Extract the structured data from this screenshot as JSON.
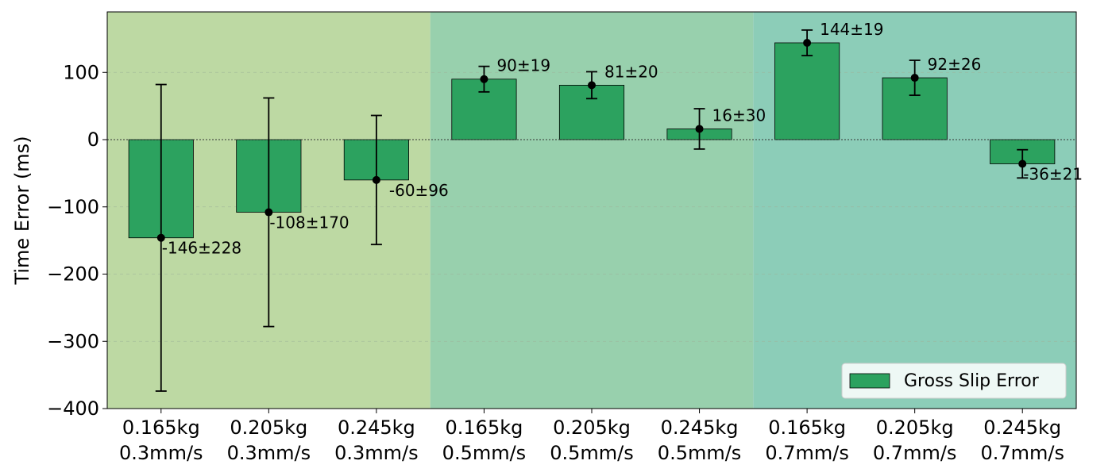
{
  "chart_data": {
    "type": "bar",
    "title": "",
    "xlabel": "",
    "ylabel": "Time Error (ms)",
    "ylim": [
      -400,
      190
    ],
    "yticks": [
      100,
      0,
      -100,
      -200,
      -300,
      -400
    ],
    "ytick_labels": [
      "100",
      "0",
      "−100",
      "−200",
      "−300",
      "−400"
    ],
    "grid": "horizontal-dashed",
    "zero_line": "dotted",
    "legend": {
      "placement": "lower-right",
      "entries": [
        "Gross Slip Error"
      ]
    },
    "bar_color": "#2ca25f",
    "categories": [
      [
        "0.165kg",
        "0.3mm/s"
      ],
      [
        "0.205kg",
        "0.3mm/s"
      ],
      [
        "0.245kg",
        "0.3mm/s"
      ],
      [
        "0.165kg",
        "0.5mm/s"
      ],
      [
        "0.205kg",
        "0.5mm/s"
      ],
      [
        "0.245kg",
        "0.5mm/s"
      ],
      [
        "0.165kg",
        "0.7mm/s"
      ],
      [
        "0.205kg",
        "0.7mm/s"
      ],
      [
        "0.245kg",
        "0.7mm/s"
      ]
    ],
    "series": [
      {
        "name": "Gross Slip Error",
        "values": [
          -146,
          -108,
          -60,
          90,
          81,
          16,
          144,
          92,
          -36
        ],
        "errors": [
          228,
          170,
          96,
          19,
          20,
          30,
          19,
          26,
          21
        ],
        "labels": [
          "-146±228",
          "-108±170",
          "-60±96",
          "90±19",
          "81±20",
          "16±30",
          "144±19",
          "92±26",
          "-36±21"
        ]
      }
    ],
    "background_bands": [
      {
        "group": "0.3mm/s",
        "color": "#bdd9a3"
      },
      {
        "group": "0.5mm/s",
        "color": "#98d0ad"
      },
      {
        "group": "0.7mm/s",
        "color": "#8ccdb8"
      }
    ]
  }
}
